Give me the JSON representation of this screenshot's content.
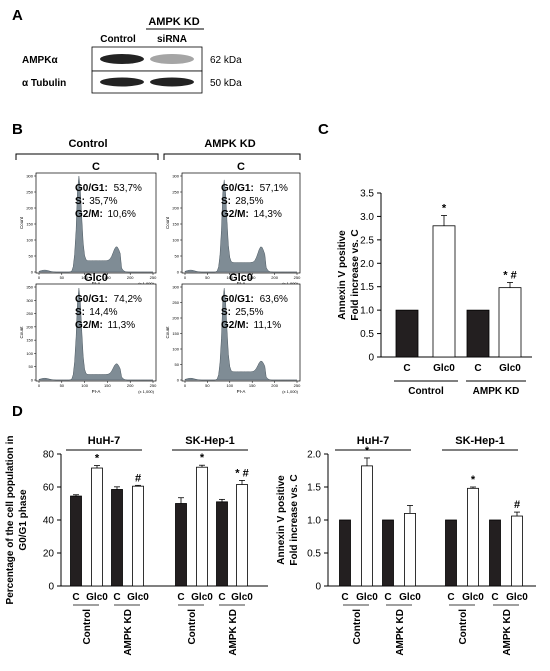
{
  "panel_labels": {
    "a": "A",
    "b": "B",
    "c": "C",
    "d": "D"
  },
  "western_blot": {
    "group_label": "AMPK KD",
    "lane_labels": [
      "Control",
      "siRNA"
    ],
    "rows": [
      {
        "protein": "AMPKα",
        "size": "62 kDa",
        "intensity": [
          1.0,
          0.35
        ]
      },
      {
        "protein": "α Tubulin",
        "size": "50 kDa",
        "intensity": [
          1.0,
          1.0
        ]
      }
    ]
  },
  "flow": {
    "column_headers": [
      "Control",
      "AMPK KD"
    ],
    "axis_label": "PI-A",
    "x_ticks": [
      "0",
      "50",
      "100",
      "150",
      "200",
      "250"
    ],
    "x_unit": "(x 1,000)",
    "y_label": "Count",
    "panels": [
      {
        "title": "C",
        "lines": [
          {
            "k": "G0/G1:",
            "v": "53,7%"
          },
          {
            "k": "S:",
            "v": "35,7%"
          },
          {
            "k": "G2/M:",
            "v": "10,6%"
          }
        ],
        "y_ticks": [
          "0",
          "50",
          "100",
          "150",
          "200",
          "250",
          "300"
        ],
        "g1_peak": 0.9,
        "s_level": 0.12,
        "g2_peak": 0.15
      },
      {
        "title": "C",
        "lines": [
          {
            "k": "G0/G1:",
            "v": "57,1%"
          },
          {
            "k": "S:",
            "v": "28,5%"
          },
          {
            "k": "G2/M:",
            "v": "14,3%"
          }
        ],
        "y_ticks": [
          "0",
          "50",
          "100",
          "150",
          "200",
          "250",
          "300"
        ],
        "g1_peak": 0.88,
        "s_level": 0.1,
        "g2_peak": 0.17
      },
      {
        "title": "Glc0",
        "lines": [
          {
            "k": "G0/G1:",
            "v": "74,2%"
          },
          {
            "k": "S:",
            "v": "14,4%"
          },
          {
            "k": "G2/M:",
            "v": "11,3%"
          }
        ],
        "y_ticks": [
          "0",
          "50",
          "100",
          "150",
          "200",
          "250",
          "300",
          "350"
        ],
        "g1_peak": 0.95,
        "s_level": 0.06,
        "g2_peak": 0.12
      },
      {
        "title": "Glc0",
        "lines": [
          {
            "k": "G0/G1:",
            "v": "63,6%"
          },
          {
            "k": "S:",
            "v": "25,5%"
          },
          {
            "k": "G2/M:",
            "v": "11,1%"
          }
        ],
        "y_ticks": [
          "0",
          "50",
          "100",
          "150",
          "200",
          "250",
          "300"
        ],
        "g1_peak": 0.92,
        "s_level": 0.09,
        "g2_peak": 0.12
      }
    ]
  },
  "chart_data": [
    {
      "id": "C",
      "type": "bar",
      "ylabel_line1": "Annexin V positive",
      "ylabel_line2": "Fold increase vs. C",
      "ylim": [
        0,
        3.5
      ],
      "yticks": [
        0,
        0.5,
        1.0,
        1.5,
        2.0,
        2.5,
        3.0,
        3.5
      ],
      "bars": [
        {
          "label": "C",
          "value": 1.0,
          "error": 0,
          "fill": "#231f20",
          "mark": ""
        },
        {
          "label": "Glc0",
          "value": 2.8,
          "error": 0.22,
          "fill": "#ffffff",
          "mark": "*"
        },
        {
          "label": "C",
          "value": 1.0,
          "error": 0,
          "fill": "#231f20",
          "mark": ""
        },
        {
          "label": "Glc0",
          "value": 1.48,
          "error": 0.11,
          "fill": "#ffffff",
          "mark": "* #"
        }
      ],
      "groups": [
        "Control",
        "AMPK KD"
      ]
    },
    {
      "id": "D-left",
      "type": "bar",
      "ylabel_line1": "Percentage of the cell population in",
      "ylabel_line2": "G0/G1 phase",
      "ylim": [
        0,
        80
      ],
      "yticks": [
        0,
        20,
        40,
        60,
        80
      ],
      "cell_lines": [
        {
          "name": "HuH-7",
          "bars": [
            {
              "label": "C",
              "value": 54.5,
              "error": 0.8,
              "fill": "#231f20",
              "mark": ""
            },
            {
              "label": "Glc0",
              "value": 71.5,
              "error": 1.5,
              "fill": "#ffffff",
              "mark": "*"
            },
            {
              "label": "C",
              "value": 58.5,
              "error": 1.6,
              "fill": "#231f20",
              "mark": ""
            },
            {
              "label": "Glc0",
              "value": 60.5,
              "error": 0.5,
              "fill": "#ffffff",
              "mark": "#"
            }
          ]
        },
        {
          "name": "SK-Hep-1",
          "bars": [
            {
              "label": "C",
              "value": 50.0,
              "error": 3.5,
              "fill": "#231f20",
              "mark": ""
            },
            {
              "label": "Glc0",
              "value": 72.0,
              "error": 1.2,
              "fill": "#ffffff",
              "mark": "*"
            },
            {
              "label": "C",
              "value": 51.0,
              "error": 1.5,
              "fill": "#231f20",
              "mark": ""
            },
            {
              "label": "Glc0",
              "value": 61.5,
              "error": 2.5,
              "fill": "#ffffff",
              "mark": "* #"
            }
          ]
        }
      ],
      "groups": [
        "Control",
        "AMPK KD"
      ]
    },
    {
      "id": "D-right",
      "type": "bar",
      "ylabel_line1": "Annexin V positive",
      "ylabel_line2": "Fold increase vs. C",
      "ylim": [
        0,
        2.0
      ],
      "yticks": [
        0,
        0.5,
        1.0,
        1.5,
        2.0
      ],
      "ytick_labels": [
        "0",
        "0.5",
        "1.0",
        "1.5",
        "2.0"
      ],
      "cell_lines": [
        {
          "name": "HuH-7",
          "bars": [
            {
              "label": "C",
              "value": 1.0,
              "error": 0,
              "fill": "#231f20",
              "mark": ""
            },
            {
              "label": "Glc0",
              "value": 1.82,
              "error": 0.12,
              "fill": "#ffffff",
              "mark": "*"
            },
            {
              "label": "C",
              "value": 1.0,
              "error": 0,
              "fill": "#231f20",
              "mark": ""
            },
            {
              "label": "Glc0",
              "value": 1.1,
              "error": 0.12,
              "fill": "#ffffff",
              "mark": ""
            }
          ]
        },
        {
          "name": "SK-Hep-1",
          "bars": [
            {
              "label": "C",
              "value": 1.0,
              "error": 0,
              "fill": "#231f20",
              "mark": ""
            },
            {
              "label": "Glc0",
              "value": 1.48,
              "error": 0.02,
              "fill": "#ffffff",
              "mark": "*"
            },
            {
              "label": "C",
              "value": 1.0,
              "error": 0,
              "fill": "#231f20",
              "mark": ""
            },
            {
              "label": "Glc0",
              "value": 1.06,
              "error": 0.06,
              "fill": "#ffffff",
              "mark": "#"
            }
          ]
        }
      ],
      "groups": [
        "Control",
        "AMPK KD"
      ]
    }
  ]
}
